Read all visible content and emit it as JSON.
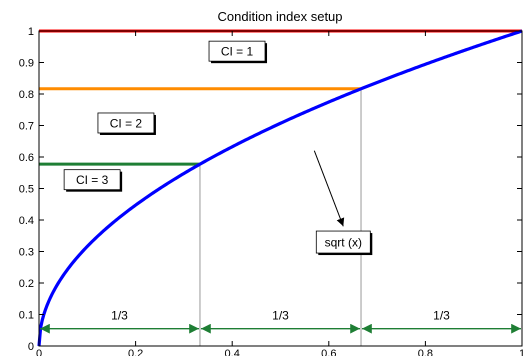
{
  "chart_data": {
    "type": "line",
    "title": "Condition index setup",
    "xlabel": "",
    "ylabel": "",
    "xlim": [
      0,
      1
    ],
    "ylim": [
      0,
      1
    ],
    "x_ticks": [
      0,
      0.2,
      0.4,
      0.6,
      0.8,
      1
    ],
    "x_tick_labels": [
      "0",
      "0.2",
      "0.4",
      "0.6",
      "0.8",
      "1"
    ],
    "y_ticks": [
      0,
      0.1,
      0.2,
      0.3,
      0.4,
      0.5,
      0.6,
      0.7,
      0.8,
      0.9,
      1
    ],
    "y_tick_labels": [
      "0",
      "0.1",
      "0.2",
      "0.3",
      "0.4",
      "0.5",
      "0.6",
      "0.7",
      "0.8",
      "0.9",
      "1"
    ],
    "grid": false,
    "curve": {
      "label": "sqrt (x)",
      "function": "sqrt",
      "color": "#0000ff",
      "label_at": [
        0.63,
        0.33
      ],
      "arrow_from": [
        0.57,
        0.62
      ],
      "arrow_to": [
        0.63,
        0.38
      ]
    },
    "threshold_lines": [
      {
        "y": 1.0,
        "x_end": 1.0,
        "color": "#ff0000"
      },
      {
        "y": 0.8165,
        "x_end": 0.6667,
        "color": "#ff8c00"
      },
      {
        "y": 0.5774,
        "x_end": 0.3333,
        "color": "#1e7e34"
      }
    ],
    "vertical_guides": [
      0.3333,
      0.6667
    ],
    "regions": [
      {
        "label": "CI = 1",
        "x": 0.41,
        "y": 0.936
      },
      {
        "label": "CI = 2",
        "x": 0.18,
        "y": 0.708
      },
      {
        "label": "CI = 3",
        "x": 0.11,
        "y": 0.528
      }
    ],
    "intervals": {
      "y": 0.055,
      "color": "#1e7e34",
      "segments": [
        {
          "from": 0,
          "to": 0.3333,
          "label": "1/3"
        },
        {
          "from": 0.3333,
          "to": 0.6667,
          "label": "1/3"
        },
        {
          "from": 0.6667,
          "to": 1.0,
          "label": "1/3"
        }
      ]
    }
  }
}
